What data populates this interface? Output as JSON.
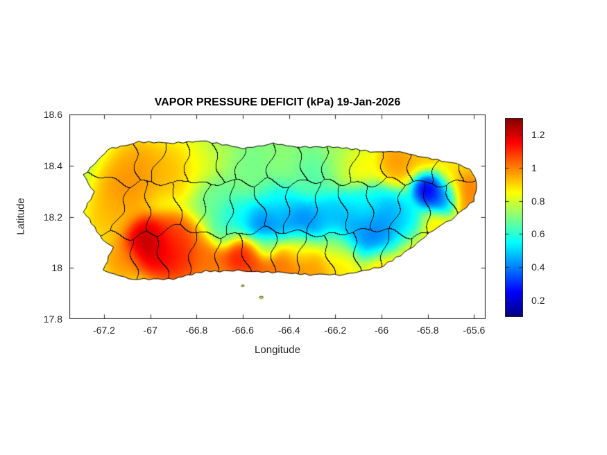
{
  "chart_data": {
    "type": "heatmap",
    "title": "VAPOR PRESSURE DEFICIT (kPa) 19-Jan-2026",
    "xlabel": "Longitude",
    "ylabel": "Latitude",
    "region": "Puerto Rico",
    "grid": false,
    "xlim": [
      -67.35,
      -65.55
    ],
    "ylim": [
      17.8,
      18.6
    ],
    "xticks": [
      -67.2,
      -67,
      -66.8,
      -66.6,
      -66.4,
      -66.2,
      -66,
      -65.8,
      -65.6
    ],
    "xtick_labels": [
      "-67.2",
      "-67",
      "-66.8",
      "-66.6",
      "-66.4",
      "-66.2",
      "-66",
      "-65.8",
      "-65.6"
    ],
    "yticks": [
      18.6,
      18.4,
      18.2,
      18,
      17.8
    ],
    "ytick_labels": [
      "18.6",
      "18.4",
      "18.2",
      "18",
      "17.8"
    ],
    "colorbar": {
      "colormap": "jet",
      "clim": [
        0.1,
        1.3
      ],
      "ticks": [
        0.2,
        0.4,
        0.6,
        0.8,
        1,
        1.2
      ],
      "tick_labels": [
        "0.2",
        "0.4",
        "0.6",
        "0.8",
        "1",
        "1.2"
      ],
      "units": "kPa"
    },
    "base_value": 0.75,
    "field_points": [
      [
        -67.03,
        18.11,
        1.3,
        0.05
      ],
      [
        -66.97,
        18.07,
        1.25,
        0.055
      ],
      [
        -66.9,
        18.12,
        1.1,
        0.05
      ],
      [
        -66.88,
        18.04,
        1.15,
        0.06
      ],
      [
        -67.12,
        18.03,
        1.0,
        0.05
      ],
      [
        -67.17,
        18.2,
        0.95,
        0.06
      ],
      [
        -67.12,
        18.3,
        1.0,
        0.06
      ],
      [
        -67.05,
        18.38,
        1.0,
        0.07
      ],
      [
        -66.9,
        18.38,
        0.95,
        0.06
      ],
      [
        -66.78,
        18.4,
        0.85,
        0.06
      ],
      [
        -66.7,
        18.46,
        0.75,
        0.05
      ],
      [
        -66.72,
        18.3,
        0.65,
        0.05
      ],
      [
        -66.55,
        18.4,
        0.68,
        0.08
      ],
      [
        -66.4,
        18.44,
        0.72,
        0.07
      ],
      [
        -66.3,
        18.38,
        0.62,
        0.06
      ],
      [
        -66.18,
        18.43,
        0.75,
        0.06
      ],
      [
        -66.62,
        18.2,
        0.55,
        0.05
      ],
      [
        -66.52,
        18.17,
        0.33,
        0.05
      ],
      [
        -66.42,
        18.2,
        0.4,
        0.055
      ],
      [
        -66.33,
        18.17,
        0.35,
        0.05
      ],
      [
        -66.22,
        18.2,
        0.45,
        0.055
      ],
      [
        -66.45,
        18.26,
        0.55,
        0.05
      ],
      [
        -66.12,
        18.16,
        0.4,
        0.06
      ],
      [
        -66.02,
        18.12,
        0.33,
        0.06
      ],
      [
        -65.97,
        18.2,
        0.42,
        0.055
      ],
      [
        -66.08,
        18.24,
        0.55,
        0.05
      ],
      [
        -65.9,
        18.15,
        0.5,
        0.05
      ],
      [
        -65.79,
        18.31,
        0.13,
        0.04
      ],
      [
        -65.73,
        18.28,
        0.35,
        0.04
      ],
      [
        -65.93,
        18.42,
        1.0,
        0.05
      ],
      [
        -65.8,
        18.44,
        0.95,
        0.045
      ],
      [
        -66.1,
        18.4,
        0.88,
        0.045
      ],
      [
        -65.64,
        18.31,
        1.05,
        0.045
      ],
      [
        -65.6,
        18.24,
        1.0,
        0.045
      ],
      [
        -65.7,
        18.37,
        0.9,
        0.04
      ],
      [
        -65.86,
        18.06,
        0.95,
        0.05
      ],
      [
        -65.99,
        18.0,
        1.0,
        0.05
      ],
      [
        -65.76,
        18.14,
        0.9,
        0.045
      ],
      [
        -66.62,
        18.05,
        1.18,
        0.045
      ],
      [
        -66.55,
        18.03,
        1.1,
        0.05
      ],
      [
        -66.43,
        18.01,
        1.05,
        0.055
      ],
      [
        -66.3,
        18.0,
        1.0,
        0.055
      ],
      [
        -66.17,
        18.02,
        0.9,
        0.05
      ],
      [
        -66.74,
        18.03,
        1.05,
        0.05
      ],
      [
        -66.35,
        18.08,
        0.85,
        0.04
      ],
      [
        -66.2,
        18.09,
        0.75,
        0.04
      ],
      [
        -66.5,
        18.08,
        0.62,
        0.03
      ],
      [
        -66.68,
        18.13,
        0.62,
        0.035
      ]
    ],
    "coastline": [
      [
        -67.29,
        18.365
      ],
      [
        -67.185,
        18.465
      ],
      [
        -67.05,
        18.49
      ],
      [
        -66.9,
        18.486
      ],
      [
        -66.755,
        18.495
      ],
      [
        -66.6,
        18.47
      ],
      [
        -66.47,
        18.487
      ],
      [
        -66.35,
        18.47
      ],
      [
        -66.19,
        18.47
      ],
      [
        -66.05,
        18.455
      ],
      [
        -65.92,
        18.457
      ],
      [
        -65.8,
        18.43
      ],
      [
        -65.7,
        18.41
      ],
      [
        -65.62,
        18.385
      ],
      [
        -65.585,
        18.33
      ],
      [
        -65.6,
        18.26
      ],
      [
        -65.68,
        18.2
      ],
      [
        -65.78,
        18.15
      ],
      [
        -65.9,
        18.06
      ],
      [
        -66.01,
        18.0
      ],
      [
        -66.16,
        17.97
      ],
      [
        -66.31,
        17.975
      ],
      [
        -66.45,
        17.985
      ],
      [
        -66.6,
        17.99
      ],
      [
        -66.76,
        17.985
      ],
      [
        -66.9,
        17.955
      ],
      [
        -67.07,
        17.955
      ],
      [
        -67.2,
        17.99
      ],
      [
        -67.16,
        18.08
      ],
      [
        -67.21,
        18.11
      ],
      [
        -67.29,
        18.22
      ],
      [
        -67.24,
        18.3
      ]
    ],
    "islets": [
      [
        -66.52,
        17.885,
        6,
        3
      ],
      [
        -66.6,
        17.93,
        4,
        2.5
      ]
    ]
  }
}
